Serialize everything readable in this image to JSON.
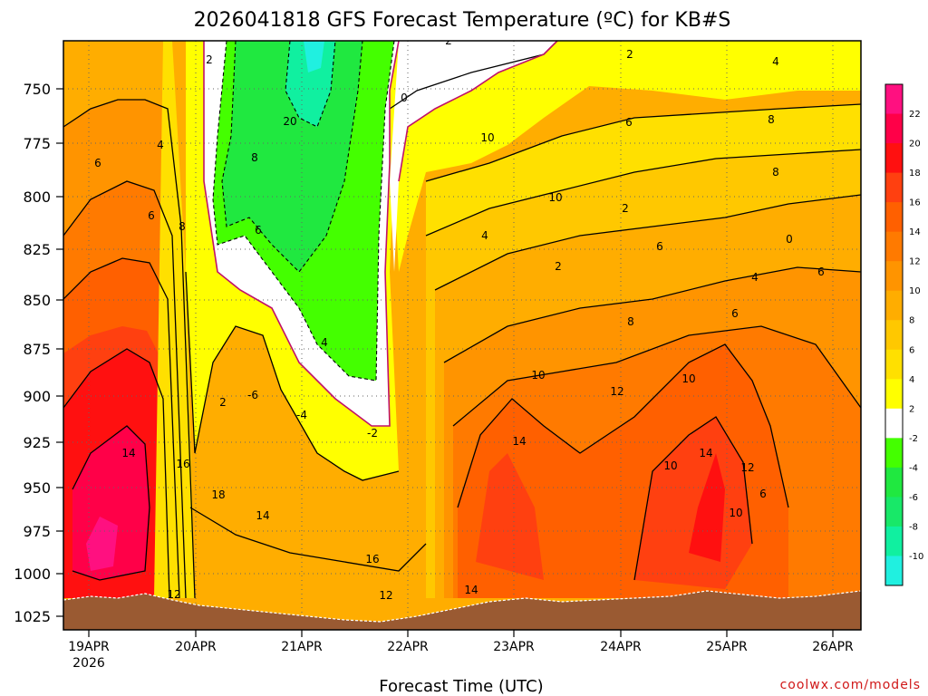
{
  "chart_data": {
    "type": "heatmap",
    "title": "2026041818 GFS Forecast Temperature (ºC) for KB#S",
    "xlabel": "Forecast Time (UTC)",
    "ylabel": "",
    "x_ticks": [
      {
        "label": "19APR",
        "sub": "2026"
      },
      {
        "label": "20APR",
        "sub": ""
      },
      {
        "label": "21APR",
        "sub": ""
      },
      {
        "label": "22APR",
        "sub": ""
      },
      {
        "label": "23APR",
        "sub": ""
      },
      {
        "label": "24APR",
        "sub": ""
      },
      {
        "label": "25APR",
        "sub": ""
      },
      {
        "label": "26APR",
        "sub": ""
      }
    ],
    "y_ticks": [
      "750",
      "775",
      "800",
      "825",
      "850",
      "875",
      "900",
      "925",
      "950",
      "975",
      "1000",
      "1025"
    ],
    "ylim": [
      1035,
      730
    ],
    "colorbar": {
      "labels": [
        "22",
        "20",
        "18",
        "16",
        "14",
        "12",
        "10",
        "8",
        "6",
        "4",
        "2",
        "-2",
        "-4",
        "-6",
        "-8",
        "-10"
      ],
      "colors": [
        "#ff1080",
        "#ff0048",
        "#ff1010",
        "#ff4010",
        "#ff6000",
        "#ff7a00",
        "#ff9400",
        "#ffad00",
        "#ffc800",
        "#ffe000",
        "#ffff00",
        "#ffffff",
        "#44ff00",
        "#20e840",
        "#18e868",
        "#10f0a0",
        "#20f0e0"
      ]
    },
    "contour_labels": [
      "2",
      "0",
      "2",
      "2",
      "4",
      "6",
      "4",
      "6",
      "8",
      "6",
      "10",
      "8",
      "10",
      "20",
      "8",
      "6",
      "4",
      "2",
      "-6",
      "-4",
      "-2",
      "2",
      "4",
      "2",
      "6",
      "8",
      "0",
      "6",
      "4",
      "6",
      "8",
      "10",
      "12",
      "10",
      "14",
      "14",
      "16",
      "18",
      "14",
      "16",
      "12",
      "12",
      "14",
      "10",
      "14",
      "12",
      "10",
      "6"
    ],
    "grid": true,
    "credit": "coolwx.com/models"
  }
}
